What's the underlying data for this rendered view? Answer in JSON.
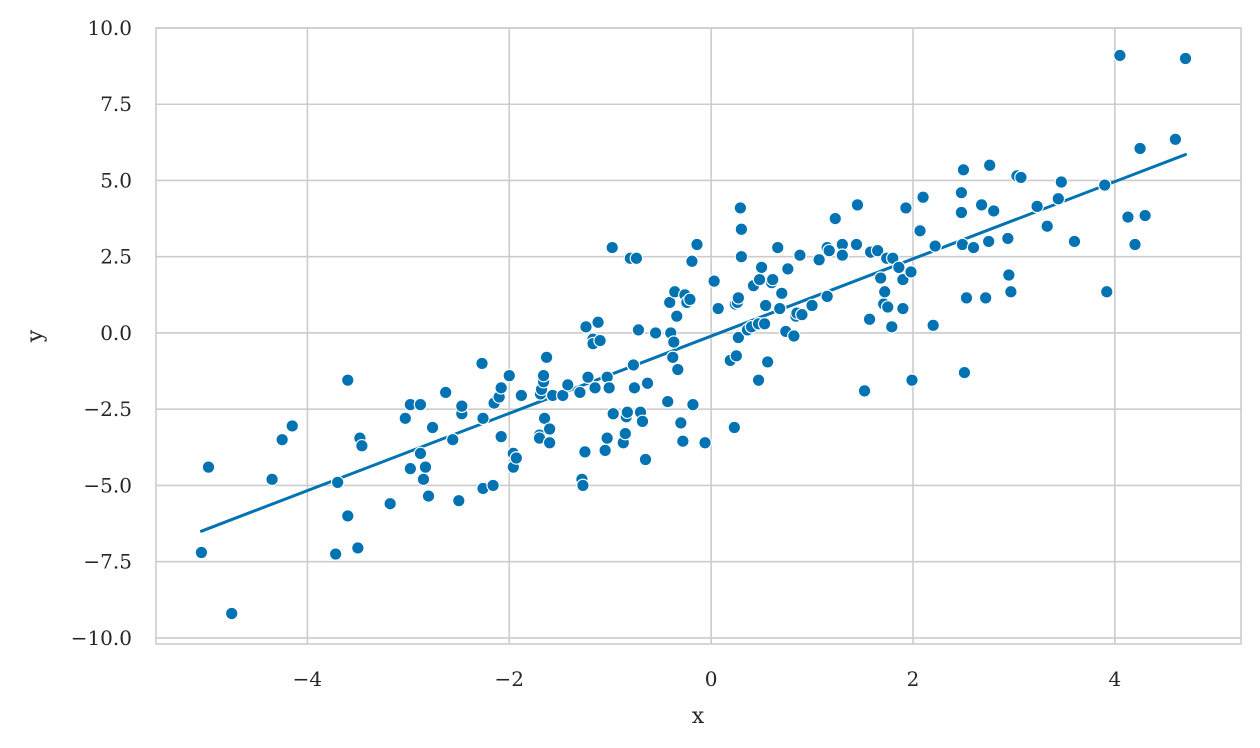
{
  "chart_data": {
    "type": "scatter",
    "title": "",
    "xlabel": "x",
    "ylabel": "y",
    "xlim": [
      -5.5,
      5.25
    ],
    "ylim": [
      -10.2,
      10.0
    ],
    "xticks": [
      -4,
      -2,
      0,
      2,
      4
    ],
    "xtick_labels": [
      "−4",
      "−2",
      "0",
      "2",
      "4"
    ],
    "yticks": [
      -10,
      -7.5,
      -5,
      -2.5,
      0,
      2.5,
      5,
      7.5,
      10
    ],
    "ytick_labels": [
      "−10.0",
      "−7.5",
      "−5.0",
      "−2.5",
      "0.0",
      "2.5",
      "5.0",
      "7.5",
      "10.0"
    ],
    "grid": true,
    "colors": {
      "points": "#0173b2",
      "line": "#0173b2",
      "point_edge": "#ffffff",
      "grid": "#cccccc"
    },
    "regression_line": {
      "x": [
        -5.05,
        4.7
      ],
      "y": [
        -6.5,
        5.85
      ]
    },
    "points": [
      [
        -5.05,
        -7.2
      ],
      [
        -4.98,
        -4.4
      ],
      [
        -4.75,
        -9.2
      ],
      [
        -4.35,
        -4.8
      ],
      [
        -4.25,
        -3.5
      ],
      [
        -4.15,
        -3.05
      ],
      [
        -3.72,
        -7.25
      ],
      [
        -3.7,
        -4.9
      ],
      [
        -3.6,
        -1.55
      ],
      [
        -3.6,
        -6.0
      ],
      [
        -3.5,
        -7.05
      ],
      [
        -3.48,
        -3.45
      ],
      [
        -3.46,
        -3.7
      ],
      [
        -3.18,
        -5.6
      ],
      [
        -3.03,
        -2.8
      ],
      [
        -2.98,
        -2.35
      ],
      [
        -2.98,
        -4.45
      ],
      [
        -2.88,
        -2.35
      ],
      [
        -2.88,
        -3.95
      ],
      [
        -2.85,
        -4.8
      ],
      [
        -2.83,
        -4.4
      ],
      [
        -2.8,
        -5.35
      ],
      [
        -2.76,
        -3.1
      ],
      [
        -2.63,
        -1.95
      ],
      [
        -2.56,
        -3.5
      ],
      [
        -2.5,
        -5.5
      ],
      [
        -2.47,
        -2.65
      ],
      [
        -2.47,
        -2.4
      ],
      [
        -2.27,
        -1.0
      ],
      [
        -2.26,
        -2.8
      ],
      [
        -2.26,
        -5.1
      ],
      [
        -2.16,
        -5.0
      ],
      [
        -2.15,
        -2.3
      ],
      [
        -2.1,
        -2.1
      ],
      [
        -2.08,
        -1.8
      ],
      [
        -2.08,
        -3.4
      ],
      [
        -2.0,
        -1.4
      ],
      [
        -1.96,
        -3.95
      ],
      [
        -1.96,
        -4.4
      ],
      [
        -1.93,
        -4.1
      ],
      [
        -1.88,
        -2.05
      ],
      [
        -1.7,
        -3.35
      ],
      [
        -1.7,
        -3.45
      ],
      [
        -1.69,
        -2.0
      ],
      [
        -1.68,
        -1.85
      ],
      [
        -1.66,
        -1.6
      ],
      [
        -1.66,
        -1.4
      ],
      [
        -1.65,
        -2.8
      ],
      [
        -1.63,
        -0.8
      ],
      [
        -1.6,
        -3.6
      ],
      [
        -1.6,
        -3.15
      ],
      [
        -1.57,
        -2.05
      ],
      [
        -1.47,
        -2.05
      ],
      [
        -1.42,
        -1.7
      ],
      [
        -1.3,
        -1.95
      ],
      [
        -1.28,
        -4.8
      ],
      [
        -1.27,
        -5.0
      ],
      [
        -1.25,
        -3.9
      ],
      [
        -1.24,
        0.2
      ],
      [
        -1.22,
        -1.45
      ],
      [
        -1.17,
        -0.2
      ],
      [
        -1.17,
        -0.35
      ],
      [
        -1.15,
        -1.8
      ],
      [
        -1.12,
        0.35
      ],
      [
        -1.1,
        -0.25
      ],
      [
        -1.05,
        -3.85
      ],
      [
        -1.03,
        -3.45
      ],
      [
        -1.03,
        -1.45
      ],
      [
        -1.01,
        -1.8
      ],
      [
        -0.98,
        2.8
      ],
      [
        -0.97,
        -2.65
      ],
      [
        -0.87,
        -3.6
      ],
      [
        -0.85,
        -3.3
      ],
      [
        -0.84,
        -2.75
      ],
      [
        -0.83,
        -2.6
      ],
      [
        -0.8,
        2.45
      ],
      [
        -0.77,
        -1.05
      ],
      [
        -0.76,
        -1.8
      ],
      [
        -0.74,
        2.45
      ],
      [
        -0.72,
        0.1
      ],
      [
        -0.7,
        -2.6
      ],
      [
        -0.68,
        -2.9
      ],
      [
        -0.65,
        -4.15
      ],
      [
        -0.63,
        -1.65
      ],
      [
        -0.55,
        0.0
      ],
      [
        -0.43,
        -2.25
      ],
      [
        -0.41,
        1.0
      ],
      [
        -0.4,
        0.0
      ],
      [
        -0.38,
        -0.8
      ],
      [
        -0.37,
        -0.3
      ],
      [
        -0.36,
        1.35
      ],
      [
        -0.34,
        0.55
      ],
      [
        -0.33,
        -1.2
      ],
      [
        -0.3,
        -2.95
      ],
      [
        -0.28,
        -3.55
      ],
      [
        -0.26,
        1.25
      ],
      [
        -0.24,
        1.0
      ],
      [
        -0.21,
        1.1
      ],
      [
        -0.19,
        2.35
      ],
      [
        -0.18,
        -2.35
      ],
      [
        -0.14,
        2.9
      ],
      [
        -0.06,
        -3.6
      ],
      [
        0.03,
        1.7
      ],
      [
        0.07,
        0.8
      ],
      [
        0.19,
        -0.9
      ],
      [
        0.23,
        -3.1
      ],
      [
        0.24,
        0.95
      ],
      [
        0.25,
        -0.75
      ],
      [
        0.26,
        1.0
      ],
      [
        0.27,
        1.15
      ],
      [
        0.27,
        -0.15
      ],
      [
        0.29,
        4.1
      ],
      [
        0.3,
        3.4
      ],
      [
        0.3,
        2.5
      ],
      [
        0.36,
        0.1
      ],
      [
        0.4,
        0.2
      ],
      [
        0.42,
        1.55
      ],
      [
        0.47,
        0.3
      ],
      [
        0.47,
        -1.55
      ],
      [
        0.48,
        1.75
      ],
      [
        0.5,
        2.15
      ],
      [
        0.53,
        0.3
      ],
      [
        0.54,
        0.9
      ],
      [
        0.56,
        -0.95
      ],
      [
        0.6,
        1.65
      ],
      [
        0.61,
        1.75
      ],
      [
        0.66,
        2.8
      ],
      [
        0.68,
        0.8
      ],
      [
        0.7,
        1.3
      ],
      [
        0.74,
        0.05
      ],
      [
        0.76,
        2.1
      ],
      [
        0.82,
        -0.1
      ],
      [
        0.84,
        0.55
      ],
      [
        0.85,
        0.65
      ],
      [
        0.88,
        2.55
      ],
      [
        0.9,
        0.6
      ],
      [
        1.0,
        0.9
      ],
      [
        1.07,
        2.4
      ],
      [
        1.15,
        1.2
      ],
      [
        1.15,
        2.8
      ],
      [
        1.17,
        2.7
      ],
      [
        1.23,
        3.75
      ],
      [
        1.3,
        2.9
      ],
      [
        1.3,
        2.55
      ],
      [
        1.44,
        2.9
      ],
      [
        1.45,
        4.2
      ],
      [
        1.52,
        -1.9
      ],
      [
        1.57,
        0.45
      ],
      [
        1.58,
        2.65
      ],
      [
        1.65,
        2.7
      ],
      [
        1.68,
        1.8
      ],
      [
        1.71,
        0.95
      ],
      [
        1.72,
        1.35
      ],
      [
        1.74,
        2.45
      ],
      [
        1.75,
        0.85
      ],
      [
        1.79,
        0.2
      ],
      [
        1.8,
        2.45
      ],
      [
        1.86,
        2.15
      ],
      [
        1.9,
        1.75
      ],
      [
        1.9,
        0.8
      ],
      [
        1.93,
        4.1
      ],
      [
        1.98,
        2.0
      ],
      [
        1.99,
        -1.55
      ],
      [
        2.07,
        3.35
      ],
      [
        2.1,
        4.45
      ],
      [
        2.2,
        0.25
      ],
      [
        2.22,
        2.85
      ],
      [
        2.48,
        4.6
      ],
      [
        2.48,
        3.95
      ],
      [
        2.49,
        2.9
      ],
      [
        2.5,
        5.35
      ],
      [
        2.51,
        -1.3
      ],
      [
        2.53,
        1.15
      ],
      [
        2.6,
        2.8
      ],
      [
        2.68,
        4.2
      ],
      [
        2.72,
        1.15
      ],
      [
        2.75,
        3.0
      ],
      [
        2.76,
        5.5
      ],
      [
        2.8,
        4.0
      ],
      [
        2.94,
        3.1
      ],
      [
        2.95,
        1.9
      ],
      [
        2.97,
        1.35
      ],
      [
        3.03,
        5.15
      ],
      [
        3.07,
        5.1
      ],
      [
        3.23,
        4.15
      ],
      [
        3.33,
        3.5
      ],
      [
        3.44,
        4.4
      ],
      [
        3.47,
        4.95
      ],
      [
        3.6,
        3.0
      ],
      [
        3.9,
        4.85
      ],
      [
        3.92,
        1.35
      ],
      [
        4.05,
        9.1
      ],
      [
        4.13,
        3.8
      ],
      [
        4.2,
        2.9
      ],
      [
        4.25,
        6.05
      ],
      [
        4.3,
        3.85
      ],
      [
        4.6,
        6.35
      ],
      [
        4.7,
        9.0
      ]
    ]
  }
}
